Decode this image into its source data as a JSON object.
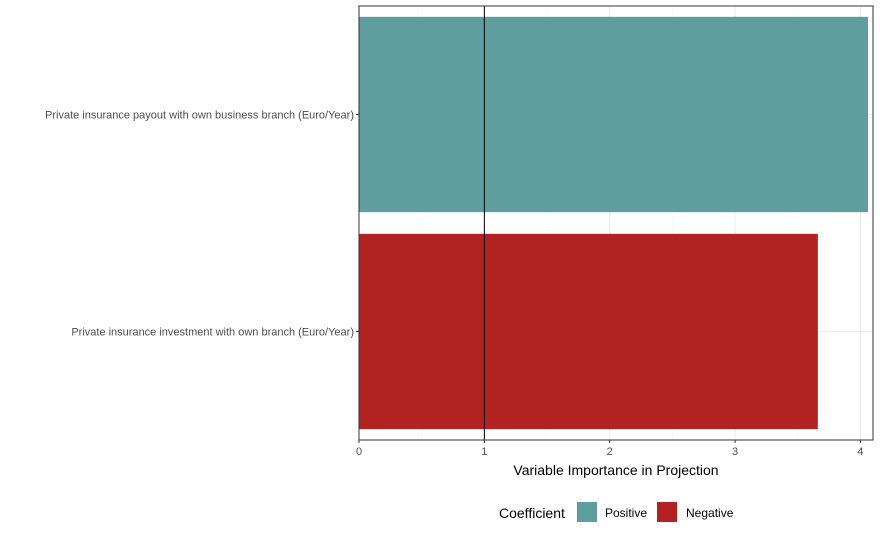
{
  "chart_data": {
    "type": "bar",
    "orientation": "horizontal",
    "categories": [
      "Private insurance payout with own business branch (Euro/Year)",
      "Private insurance investment with own branch (Euro/Year)"
    ],
    "values": [
      4.06,
      3.66
    ],
    "coefficient": [
      "Positive",
      "Negative"
    ],
    "xlabel": "Variable Importance in Projection",
    "ylabel": "",
    "xlim": [
      0,
      4.1
    ],
    "x_ticks": [
      "0",
      "1",
      "2",
      "3",
      "4"
    ],
    "reference_line": 1,
    "grid": true,
    "legend": {
      "title": "Coefficient",
      "position": "bottom",
      "entries": [
        {
          "label": "Positive",
          "color": "#5f9ea0"
        },
        {
          "label": "Negative",
          "color": "#b22222"
        }
      ]
    }
  }
}
